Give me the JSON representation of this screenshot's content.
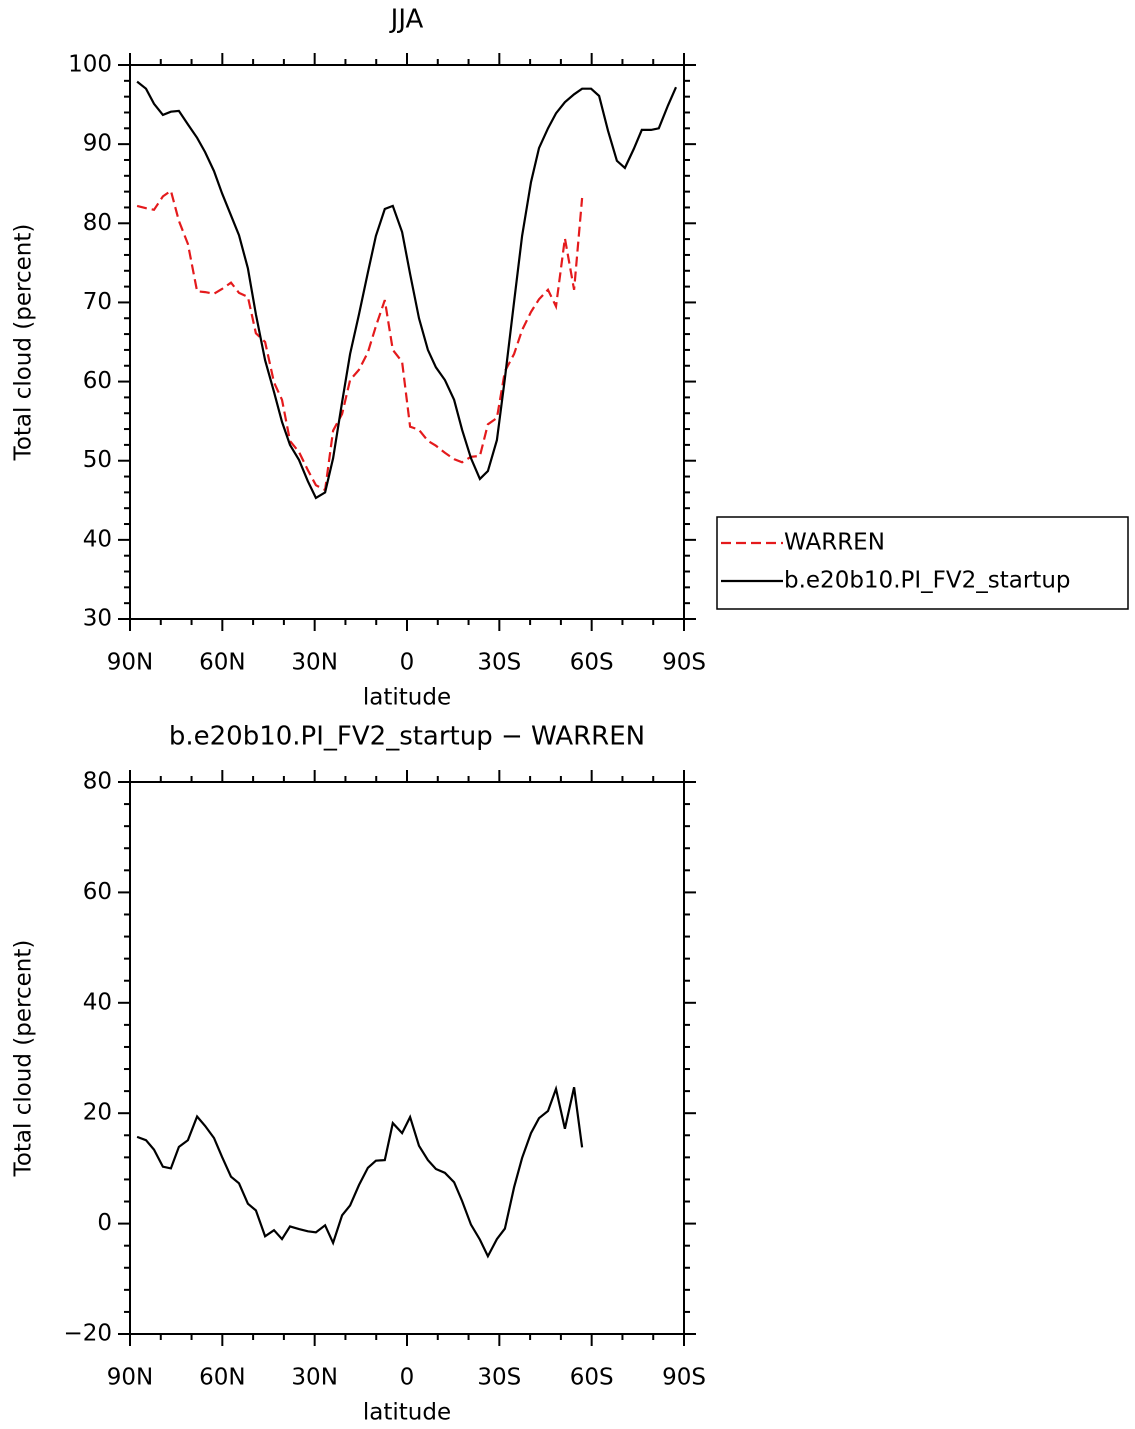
{
  "chart_data": [
    {
      "type": "line",
      "title": "JJA",
      "xlabel": "latitude",
      "ylabel": "Total cloud (percent)",
      "x": [
        87.7,
        84.8,
        82.2,
        79.3,
        76.7,
        74.1,
        71.2,
        68.2,
        65.6,
        62.7,
        60.1,
        57.2,
        54.6,
        51.7,
        49.1,
        46.1,
        43.2,
        40.6,
        38.0,
        35.1,
        32.2,
        29.6,
        26.6,
        24.0,
        21.1,
        18.5,
        15.6,
        12.7,
        10.1,
        7.2,
        4.6,
        1.6,
        -1.0,
        -3.9,
        -6.8,
        -9.4,
        -12.3,
        -15.3,
        -17.9,
        -20.8,
        -23.7,
        -26.3,
        -29.2,
        -31.8,
        -34.8,
        -37.4,
        -40.3,
        -42.9,
        -45.8,
        -48.4,
        -51.3,
        -54.3,
        -56.9,
        -59.8,
        -62.4,
        -65.3,
        -68.2,
        -70.8,
        -73.7,
        -76.3,
        -79.3,
        -81.8,
        -84.8,
        -87.4
      ],
      "xlim": [
        90,
        -90
      ],
      "xticks": [
        {
          "value": 90,
          "label": "90N"
        },
        {
          "value": 60,
          "label": "60N"
        },
        {
          "value": 30,
          "label": "30N"
        },
        0,
        {
          "value": -30,
          "label": "30S"
        },
        {
          "value": -60,
          "label": "60S"
        },
        {
          "value": -90,
          "label": "90S"
        }
      ],
      "xminorticks": [
        80,
        70,
        50,
        40,
        20,
        10,
        -10,
        -20,
        -40,
        -50,
        -70,
        -80
      ],
      "ylim": [
        30,
        100
      ],
      "yticks": [
        30,
        40,
        50,
        60,
        70,
        80,
        90,
        100
      ],
      "yminorticks": [
        32,
        34,
        36,
        38,
        42,
        44,
        46,
        48,
        52,
        54,
        56,
        58,
        62,
        64,
        66,
        68,
        72,
        74,
        76,
        78,
        82,
        84,
        86,
        88,
        92,
        94,
        96,
        98
      ],
      "legend": "right",
      "series": [
        {
          "name": "WARREN",
          "color": "#e41a1c",
          "dash": true,
          "values": [
            82.2,
            81.9,
            81.7,
            83.4,
            84.1,
            80.3,
            77.4,
            71.4,
            71.3,
            71.1,
            71.7,
            72.5,
            71.2,
            70.7,
            66.1,
            65.0,
            59.9,
            57.7,
            52.5,
            51.1,
            48.8,
            46.9,
            46.3,
            53.8,
            55.9,
            60.2,
            61.5,
            63.7,
            67.0,
            70.3,
            64.0,
            62.5,
            54.3,
            53.9,
            52.5,
            51.9,
            51.0,
            50.2,
            49.8,
            50.5,
            50.6,
            54.6,
            55.4,
            61.3,
            63.5,
            66.5,
            68.8,
            70.4,
            71.6,
            69.5,
            78.1,
            71.6,
            83.2,
            null,
            null,
            null,
            null,
            null,
            null,
            null,
            null,
            null,
            null,
            null
          ]
        },
        {
          "name": "b.e20b10.PI_FV2_startup",
          "color": "#000000",
          "dash": false,
          "values": [
            97.9,
            97.0,
            95.1,
            93.7,
            94.1,
            94.2,
            92.5,
            90.8,
            89.0,
            86.6,
            83.8,
            81.0,
            78.5,
            74.3,
            68.5,
            62.7,
            58.7,
            54.9,
            52.0,
            50.1,
            47.4,
            45.3,
            46.0,
            50.3,
            57.4,
            63.5,
            68.5,
            73.8,
            78.4,
            81.8,
            82.2,
            78.9,
            73.6,
            68.0,
            64.0,
            61.8,
            60.2,
            57.7,
            53.9,
            50.3,
            47.7,
            48.7,
            52.6,
            60.4,
            70.1,
            78.4,
            85.2,
            89.5,
            92.0,
            93.9,
            95.3,
            96.3,
            97.0,
            97.0,
            96.1,
            91.7,
            87.9,
            87.0,
            89.4,
            91.8,
            91.8,
            92.0,
            94.9,
            97.2
          ]
        }
      ]
    },
    {
      "type": "line",
      "title": "b.e20b10.PI_FV2_startup − WARREN",
      "xlabel": "latitude",
      "ylabel": "Total cloud (percent)",
      "x": [
        87.7,
        84.8,
        82.2,
        79.3,
        76.7,
        74.1,
        71.2,
        68.2,
        65.6,
        62.7,
        60.1,
        57.2,
        54.6,
        51.7,
        49.1,
        46.1,
        43.2,
        40.6,
        38.0,
        35.1,
        32.2,
        29.6,
        26.6,
        24.0,
        21.1,
        18.5,
        15.6,
        12.7,
        10.1,
        7.2,
        4.6,
        1.6,
        -1.0,
        -3.9,
        -6.8,
        -9.4,
        -12.3,
        -15.3,
        -17.9,
        -20.8,
        -23.7,
        -26.3,
        -29.2,
        -31.8,
        -34.8,
        -37.4,
        -40.3,
        -42.9,
        -45.8,
        -48.4,
        -51.3,
        -54.3,
        -56.9
      ],
      "xlim": [
        90,
        -90
      ],
      "xticks": [
        {
          "value": 90,
          "label": "90N"
        },
        {
          "value": 60,
          "label": "60N"
        },
        {
          "value": 30,
          "label": "30N"
        },
        0,
        {
          "value": -30,
          "label": "30S"
        },
        {
          "value": -60,
          "label": "60S"
        },
        {
          "value": -90,
          "label": "90S"
        }
      ],
      "xminorticks": [
        80,
        70,
        50,
        40,
        20,
        10,
        -10,
        -20,
        -40,
        -50,
        -70,
        -80
      ],
      "ylim": [
        -20,
        80
      ],
      "yticks": [
        {
          "value": -20,
          "label": "−20"
        },
        0,
        20,
        40,
        60,
        80
      ],
      "yminorticks": [
        -16,
        -12,
        -8,
        -4,
        4,
        8,
        12,
        16,
        24,
        28,
        32,
        36,
        44,
        48,
        52,
        56,
        64,
        68,
        72,
        76
      ],
      "series": [
        {
          "color": "#000000",
          "dash": false,
          "values": [
            15.7,
            15.1,
            13.4,
            10.3,
            10.0,
            13.9,
            15.1,
            19.4,
            17.7,
            15.5,
            12.1,
            8.5,
            7.3,
            3.6,
            2.4,
            -2.3,
            -1.2,
            -2.8,
            -0.5,
            -1.0,
            -1.4,
            -1.6,
            -0.3,
            -3.5,
            1.5,
            3.3,
            7.0,
            10.1,
            11.4,
            11.5,
            18.2,
            16.4,
            19.3,
            14.1,
            11.5,
            9.9,
            9.2,
            7.5,
            4.1,
            -0.2,
            -2.9,
            -5.9,
            -2.8,
            -0.9,
            6.6,
            11.9,
            16.4,
            19.1,
            20.4,
            24.4,
            17.2,
            24.7,
            13.8
          ]
        }
      ]
    }
  ]
}
